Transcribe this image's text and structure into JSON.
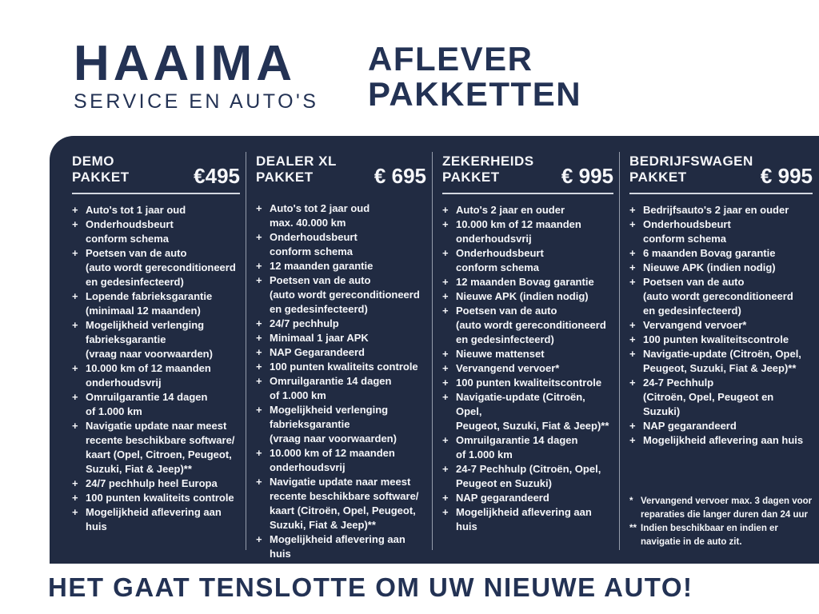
{
  "header": {
    "logo_name": "HAAIMA",
    "logo_subtitle": "SERVICE EN AUTO'S",
    "title_line1": "AFLEVER",
    "title_line2": "PAKKETTEN"
  },
  "footer": {
    "tagline": "HET GAAT TENSLOTTE OM UW NIEUWE AUTO!"
  },
  "colors": {
    "panel_bg": "#212b42",
    "navy_text": "#233254",
    "item_text": "#f5f6f9",
    "column_divider": "#959cab",
    "title_rule": "#d3d8e0"
  },
  "packages": [
    {
      "title_line1": "DEMO",
      "title_line2": "PAKKET",
      "price": "€495",
      "items": [
        [
          "Auto's tot 1 jaar oud"
        ],
        [
          "Onderhoudsbeurt",
          "conform schema"
        ],
        [
          "Poetsen van de auto",
          "(auto wordt gereconditioneerd",
          "en gedesinfecteerd)"
        ],
        [
          "Lopende fabrieksgarantie",
          "(minimaal 12 maanden)"
        ],
        [
          "Mogelijkheid verlenging",
          "fabrieksgarantie",
          "(vraag naar voorwaarden)"
        ],
        [
          "10.000 km of 12 maanden",
          "onderhoudsvrij"
        ],
        [
          "Omruilgarantie 14 dagen",
          "of 1.000 km"
        ],
        [
          "Navigatie update naar meest",
          "recente beschikbare software/",
          "kaart (Opel, Citroen,  Peugeot,",
          "Suzuki, Fiat & Jeep)**"
        ],
        [
          "24/7 pechhulp heel Europa"
        ],
        [
          "100 punten kwaliteits controle"
        ],
        [
          "Mogelijkheid aflevering aan huis"
        ]
      ],
      "footnotes": []
    },
    {
      "title_line1": "DEALER XL",
      "title_line2": "PAKKET",
      "price": "€ 695",
      "items": [
        [
          "Auto's tot 2 jaar oud",
          "max. 40.000 km"
        ],
        [
          "Onderhoudsbeurt",
          "conform schema"
        ],
        [
          "12 maanden garantie"
        ],
        [
          "Poetsen van de auto",
          "(auto wordt gereconditioneerd",
          "en gedesinfecteerd)"
        ],
        [
          "24/7 pechhulp"
        ],
        [
          "Minimaal 1 jaar APK"
        ],
        [
          "NAP Gegarandeerd"
        ],
        [
          "100 punten kwaliteits controle"
        ],
        [
          "Omruilgarantie 14 dagen",
          "of 1.000 km"
        ],
        [
          "Mogelijkheid verlenging",
          "fabrieksgarantie",
          "(vraag naar voorwaarden)"
        ],
        [
          "10.000 km of 12 maanden",
          "onderhoudsvrij"
        ],
        [
          "Navigatie update naar meest",
          "recente beschikbare software/",
          "kaart (Citroën, Opel, Peugeot,",
          "Suzuki, Fiat & Jeep)**"
        ],
        [
          "Mogelijkheid aflevering aan huis"
        ]
      ],
      "footnotes": []
    },
    {
      "title_line1": "ZEKERHEIDS",
      "title_line2": "PAKKET",
      "price": "€ 995",
      "items": [
        [
          "Auto's 2 jaar en ouder"
        ],
        [
          "10.000 km of 12 maanden",
          "onderhoudsvrij"
        ],
        [
          "Onderhoudsbeurt",
          "conform schema"
        ],
        [
          "12 maanden Bovag garantie"
        ],
        [
          "Nieuwe APK (indien nodig)"
        ],
        [
          "Poetsen van de auto",
          "(auto wordt gereconditioneerd",
          "en gedesinfecteerd)"
        ],
        [
          "Nieuwe mattenset"
        ],
        [
          "Vervangend vervoer*"
        ],
        [
          "100 punten kwaliteitscontrole"
        ],
        [
          "Navigatie-update (Citroën, Opel,",
          "Peugeot, Suzuki, Fiat & Jeep)**"
        ],
        [
          "Omruilgarantie 14 dagen",
          "of 1.000 km"
        ],
        [
          "24-7 Pechhulp (Citroën, Opel,",
          "Peugeot en Suzuki)"
        ],
        [
          "NAP gegarandeerd"
        ],
        [
          "Mogelijkheid aflevering aan huis"
        ]
      ],
      "footnotes": []
    },
    {
      "title_line1": "BEDRIJFSWAGEN",
      "title_line2": "PAKKET",
      "price": "€ 995",
      "items": [
        [
          "Bedrijfsauto's 2 jaar en ouder"
        ],
        [
          "Onderhoudsbeurt",
          "conform schema"
        ],
        [
          "6 maanden Bovag garantie"
        ],
        [
          "Nieuwe APK (indien nodig)"
        ],
        [
          "Poetsen van de auto",
          "(auto wordt gereconditioneerd",
          "en gedesinfecteerd)"
        ],
        [
          "Vervangend vervoer*"
        ],
        [
          "100 punten kwaliteitscontrole"
        ],
        [
          "Navigatie-update (Citroën, Opel,",
          "Peugeot, Suzuki, Fiat & Jeep)**"
        ],
        [
          "24-7 Pechhulp",
          "(Citroën, Opel, Peugeot en Suzuki)"
        ],
        [
          "NAP gegarandeerd"
        ],
        [
          "Mogelijkheid aflevering aan huis"
        ]
      ],
      "footnotes": [
        {
          "marker": "*",
          "lines": [
            "Vervangend vervoer max. 3 dagen voor",
            "reparaties die langer duren dan 24 uur"
          ]
        },
        {
          "marker": "**",
          "lines": [
            "Indien beschikbaar en indien er",
            "navigatie in de auto zit."
          ]
        }
      ]
    }
  ]
}
